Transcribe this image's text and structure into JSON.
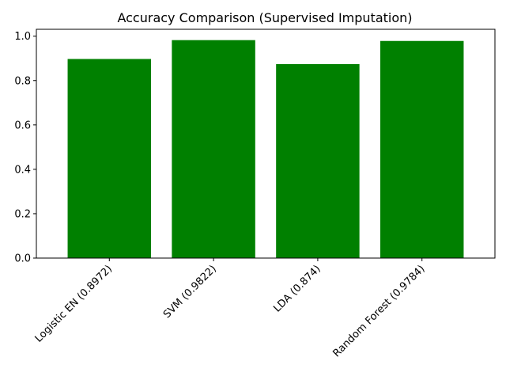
{
  "chart_data": {
    "type": "bar",
    "title": "Accuracy Comparison (Supervised Imputation)",
    "xlabel": "",
    "ylabel": "",
    "categories": [
      "Logistic EN (0.8972)",
      "SVM (0.9822)",
      "LDA (0.874)",
      "Random Forest (0.9784)"
    ],
    "values": [
      0.8972,
      0.9822,
      0.874,
      0.9784
    ],
    "ylim": [
      0,
      1.031
    ],
    "yticks": [
      "0.0",
      "0.2",
      "0.4",
      "0.6",
      "0.8",
      "1.0"
    ],
    "grid": false,
    "legend": "none",
    "bar_color": "#008000"
  }
}
